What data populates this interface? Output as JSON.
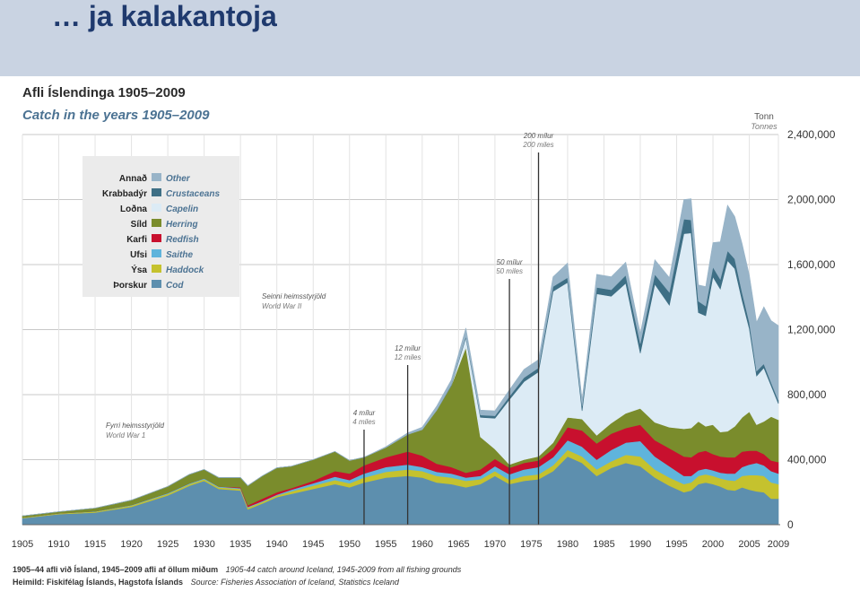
{
  "slide": {
    "title": "… ja kalakantoja"
  },
  "chart_data": {
    "type": "area",
    "stacked": true,
    "title": "Afli Íslendinga 1905–2009",
    "subtitle": "Catch in the years 1905–2009",
    "ylabel": "Tonn",
    "ylabel_en": "Tonnes",
    "xlim": [
      1905,
      2009
    ],
    "ylim": [
      0,
      2400000
    ],
    "y_ticks": [
      0,
      400000,
      800000,
      1200000,
      1600000,
      2000000,
      2400000
    ],
    "y_tick_labels": [
      "0",
      "400,000",
      "800,000",
      "1,200,000",
      "1,600,000",
      "2,000,000",
      "2,400,000"
    ],
    "x_ticks": [
      1905,
      1910,
      1915,
      1920,
      1925,
      1930,
      1935,
      1940,
      1945,
      1950,
      1955,
      1960,
      1965,
      1970,
      1975,
      1980,
      1985,
      1990,
      1995,
      2000,
      2005,
      2009
    ],
    "x_tick_labels": [
      "1905",
      "1910",
      "1915",
      "1920",
      "1925",
      "1930",
      "1935",
      "1940",
      "1945",
      "1950",
      "1955",
      "1960",
      "1965",
      "1970",
      "1975",
      "1980",
      "1985",
      "1990",
      "1995",
      "2000",
      "2005",
      "2009"
    ],
    "grid": true,
    "legend_position": "top-left",
    "x": [
      1905,
      1910,
      1915,
      1920,
      1925,
      1928,
      1930,
      1932,
      1935,
      1936,
      1938,
      1940,
      1942,
      1945,
      1948,
      1950,
      1952,
      1955,
      1958,
      1960,
      1962,
      1964,
      1966,
      1968,
      1970,
      1972,
      1974,
      1976,
      1978,
      1980,
      1982,
      1984,
      1986,
      1988,
      1990,
      1992,
      1994,
      1996,
      1997,
      1998,
      1999,
      2000,
      2001,
      2002,
      2003,
      2004,
      2005,
      2006,
      2007,
      2008,
      2009
    ],
    "series": [
      {
        "name": "Cod",
        "name_is": "Þorskur",
        "color": "#5d8fae",
        "values": [
          40000,
          65000,
          75000,
          110000,
          180000,
          240000,
          270000,
          220000,
          210000,
          95000,
          130000,
          170000,
          190000,
          220000,
          250000,
          230000,
          260000,
          290000,
          300000,
          290000,
          260000,
          250000,
          230000,
          250000,
          300000,
          250000,
          270000,
          280000,
          330000,
          420000,
          380000,
          300000,
          350000,
          380000,
          360000,
          290000,
          240000,
          200000,
          210000,
          250000,
          260000,
          250000,
          235000,
          215000,
          210000,
          230000,
          215000,
          205000,
          200000,
          160000,
          160000
        ]
      },
      {
        "name": "Haddock",
        "name_is": "Ýsa",
        "color": "#c5c22e",
        "values": [
          3000,
          4000,
          5000,
          8000,
          10000,
          10000,
          10000,
          10000,
          10000,
          10000,
          10000,
          10000,
          15000,
          20000,
          25000,
          25000,
          30000,
          35000,
          40000,
          40000,
          40000,
          40000,
          40000,
          30000,
          30000,
          25000,
          30000,
          30000,
          35000,
          40000,
          40000,
          40000,
          40000,
          50000,
          60000,
          50000,
          50000,
          50000,
          50000,
          50000,
          50000,
          50000,
          50000,
          60000,
          60000,
          70000,
          90000,
          100000,
          100000,
          100000,
          90000
        ]
      },
      {
        "name": "Saithe",
        "name_is": "Ufsi",
        "color": "#5fb4dc",
        "values": [
          1000,
          1000,
          2000,
          3000,
          5000,
          5000,
          5000,
          5000,
          5000,
          5000,
          5000,
          5000,
          10000,
          15000,
          20000,
          20000,
          25000,
          30000,
          30000,
          25000,
          25000,
          25000,
          20000,
          20000,
          30000,
          35000,
          40000,
          45000,
          50000,
          60000,
          60000,
          60000,
          70000,
          75000,
          95000,
          80000,
          70000,
          50000,
          40000,
          35000,
          35000,
          35000,
          35000,
          40000,
          45000,
          55000,
          65000,
          75000,
          65000,
          70000,
          65000
        ]
      },
      {
        "name": "Redfish",
        "name_is": "Karfi",
        "color": "#c8102e",
        "values": [
          0,
          0,
          0,
          0,
          0,
          0,
          0,
          0,
          5000,
          10000,
          15000,
          15000,
          10000,
          15000,
          35000,
          40000,
          50000,
          60000,
          80000,
          70000,
          50000,
          40000,
          30000,
          40000,
          45000,
          40000,
          40000,
          40000,
          50000,
          80000,
          100000,
          100000,
          100000,
          90000,
          100000,
          100000,
          110000,
          120000,
          115000,
          110000,
          110000,
          100000,
          100000,
          100000,
          100000,
          95000,
          85000,
          75000,
          70000,
          65000,
          70000
        ]
      },
      {
        "name": "Herring",
        "name_is": "Síld",
        "color": "#7a8c2c",
        "values": [
          10000,
          10000,
          20000,
          30000,
          40000,
          55000,
          55000,
          55000,
          60000,
          120000,
          140000,
          150000,
          135000,
          130000,
          120000,
          80000,
          50000,
          60000,
          105000,
          160000,
          330000,
          500000,
          770000,
          200000,
          60000,
          20000,
          20000,
          25000,
          40000,
          60000,
          70000,
          50000,
          65000,
          90000,
          100000,
          110000,
          130000,
          170000,
          180000,
          190000,
          150000,
          180000,
          150000,
          160000,
          190000,
          210000,
          240000,
          160000,
          200000,
          270000,
          260000
        ]
      },
      {
        "name": "Capelin",
        "name_is": "Loðna",
        "color": "#dcebf5",
        "values": [
          0,
          0,
          0,
          0,
          0,
          0,
          0,
          0,
          0,
          0,
          0,
          0,
          0,
          0,
          0,
          0,
          0,
          0,
          0,
          0,
          0,
          0,
          60000,
          120000,
          190000,
          400000,
          480000,
          520000,
          930000,
          830000,
          50000,
          870000,
          780000,
          800000,
          340000,
          850000,
          750000,
          1200000,
          1200000,
          670000,
          680000,
          910000,
          880000,
          1050000,
          970000,
          720000,
          510000,
          300000,
          330000,
          190000,
          100000
        ]
      },
      {
        "name": "Crustaceans",
        "name_is": "Krabbadýr",
        "color": "#3e6f85",
        "values": [
          0,
          0,
          0,
          0,
          0,
          0,
          0,
          0,
          0,
          0,
          0,
          0,
          0,
          0,
          0,
          0,
          0,
          0,
          0,
          0,
          0,
          5000,
          10000,
          15000,
          15000,
          20000,
          25000,
          25000,
          30000,
          30000,
          30000,
          40000,
          40000,
          50000,
          60000,
          60000,
          80000,
          90000,
          80000,
          70000,
          60000,
          60000,
          60000,
          60000,
          60000,
          50000,
          40000,
          30000,
          25000,
          20000,
          20000
        ]
      },
      {
        "name": "Other",
        "name_is": "Annað",
        "color": "#98b4c8",
        "values": [
          0,
          0,
          0,
          0,
          0,
          0,
          0,
          0,
          0,
          0,
          0,
          0,
          0,
          0,
          0,
          0,
          0,
          5000,
          10000,
          15000,
          25000,
          30000,
          50000,
          30000,
          30000,
          40000,
          50000,
          50000,
          60000,
          90000,
          40000,
          80000,
          80000,
          80000,
          60000,
          90000,
          90000,
          120000,
          130000,
          100000,
          120000,
          150000,
          230000,
          280000,
          260000,
          300000,
          290000,
          300000,
          350000,
          380000,
          460000
        ]
      }
    ],
    "annotations": [
      {
        "x": 1916,
        "label_is": "Fyrri heimsstyrjöld",
        "label_en": "World War 1"
      },
      {
        "x": 1941,
        "label_is": "Seinni heimsstyrjöld",
        "label_en": "World War II"
      },
      {
        "x": 1952,
        "label_is": "4 mílur",
        "label_en": "4 miles"
      },
      {
        "x": 1958,
        "label_is": "12 mílur",
        "label_en": "12 miles"
      },
      {
        "x": 1972,
        "label_is": "50 mílur",
        "label_en": "50 miles"
      },
      {
        "x": 1976,
        "label_is": "200 mílur",
        "label_en": "200 miles"
      }
    ],
    "footnote_is": "1905–44 afli við Ísland, 1945–2009 afli af öllum miðum",
    "footnote_en": "1905-44 catch around Iceland, 1945-2009 from all fishing grounds",
    "source_is": "Heimild: Fiskifélag Íslands, Hagstofa Íslands",
    "source_en": "Source: Fisheries Association of Iceland, Statistics Iceland"
  }
}
